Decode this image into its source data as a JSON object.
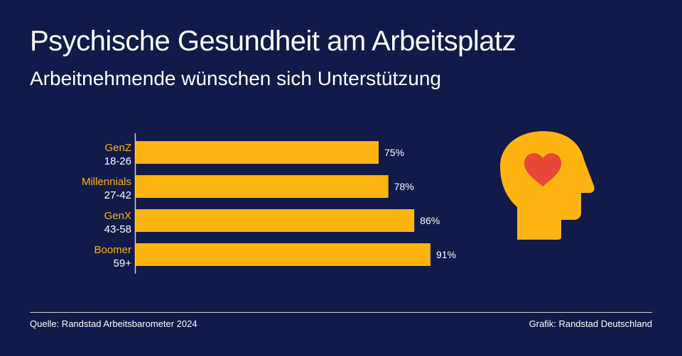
{
  "header": {
    "title": "Psychische Gesundheit am Arbeitsplatz",
    "subtitle": "Arbeitnehmende wünschen sich Unterstützung"
  },
  "chart_data": {
    "type": "bar",
    "orientation": "horizontal",
    "categories": [
      "GenZ",
      "Millennials",
      "GenX",
      "Boomer"
    ],
    "category_sublabels": [
      "18-26",
      "27-42",
      "43-58",
      "59+"
    ],
    "values": [
      75,
      78,
      86,
      91
    ],
    "value_labels": [
      "75%",
      "78%",
      "86%",
      "91%"
    ],
    "xlim": [
      0,
      100
    ],
    "grid": false,
    "colors": {
      "bar": "#ffb511",
      "category_label": "#ffb511",
      "background": "#111a48"
    }
  },
  "illustration": {
    "icon": "head-with-heart-icon",
    "head_color": "#ffb511",
    "heart_color": "#e8473a"
  },
  "footer": {
    "source": "Quelle: Randstad Arbeitsbarometer 2024",
    "credit": "Grafik: Randstad Deutschland"
  }
}
